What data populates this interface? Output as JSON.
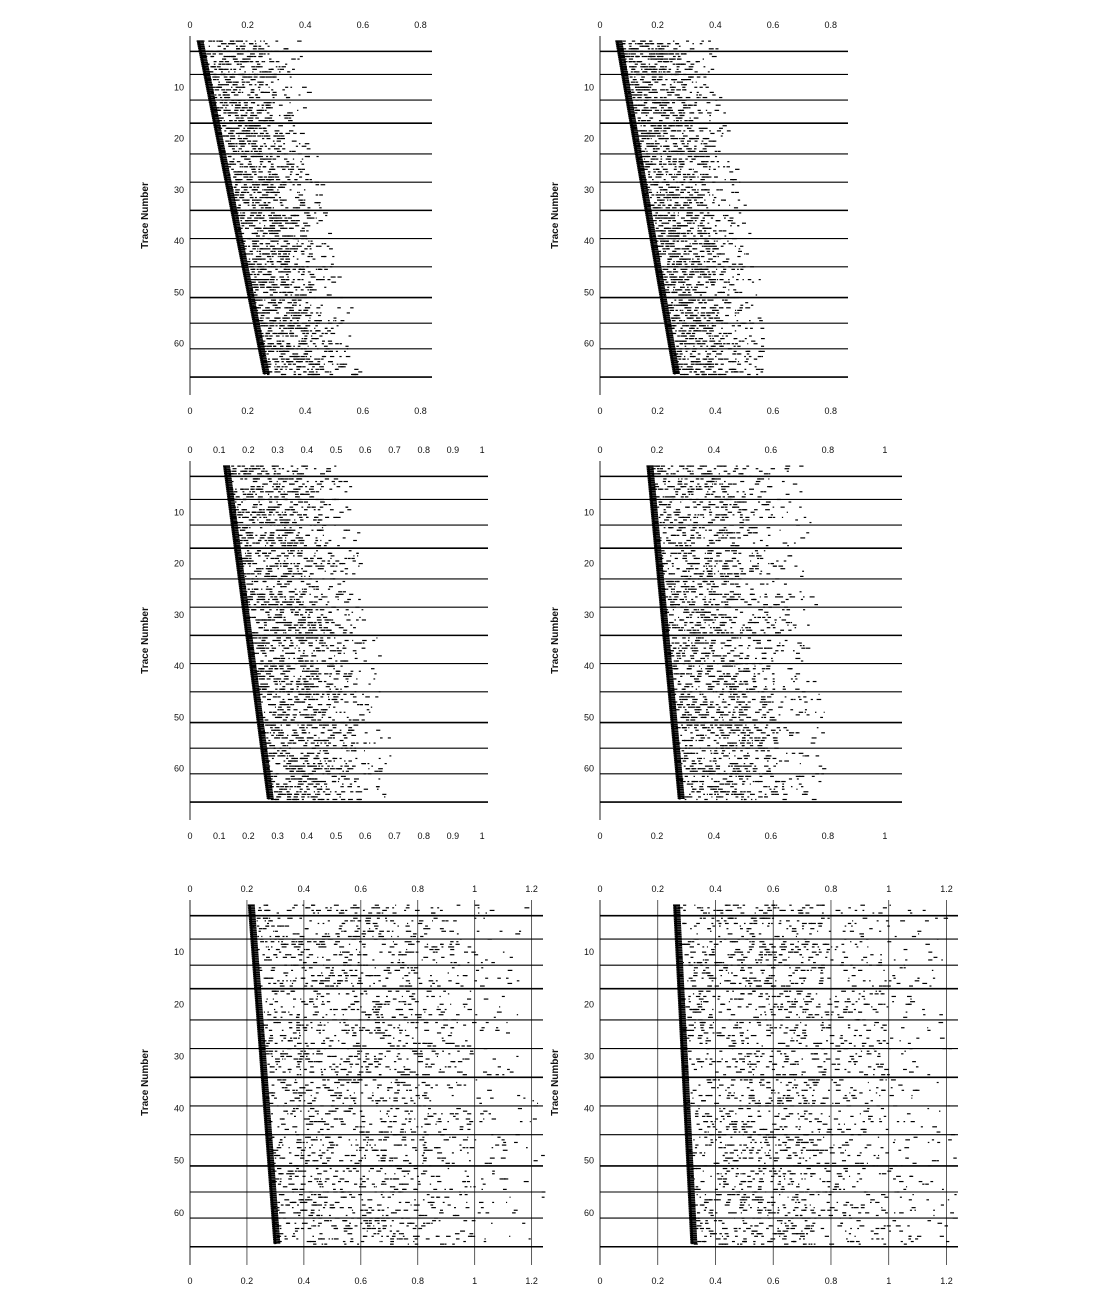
{
  "chart_data": [
    {
      "type": "scatter",
      "ylabel": "Trace Number",
      "xlabel": "",
      "xticks": [
        "0",
        "0.2",
        "0.4",
        "0.6",
        "0.8"
      ],
      "xlim": [
        0,
        0.84
      ],
      "yticks": [
        "10",
        "20",
        "30",
        "40",
        "50",
        "60"
      ],
      "ylim": [
        0,
        70
      ],
      "grid": "horizontal trace-boundary lines",
      "first_arrival": [
        {
          "trace": 1,
          "t": 0.03
        },
        {
          "trace": 66,
          "t": 0.26
        }
      ],
      "noise_extent_t": 0.35
    },
    {
      "type": "scatter",
      "ylabel": "Trace Number",
      "xlabel": "",
      "xticks": [
        "0",
        "0.2",
        "0.4",
        "0.6",
        "0.8"
      ],
      "xlim": [
        0,
        0.86
      ],
      "yticks": [
        "10",
        "20",
        "30",
        "40",
        "50",
        "60"
      ],
      "ylim": [
        0,
        70
      ],
      "grid": "horizontal trace-boundary lines",
      "first_arrival": [
        {
          "trace": 1,
          "t": 0.06
        },
        {
          "trace": 66,
          "t": 0.26
        }
      ],
      "noise_extent_t": 0.35
    },
    {
      "type": "scatter",
      "ylabel": "Trace Number",
      "xlabel": "",
      "xticks": [
        "0",
        "0.1",
        "0.2",
        "0.3",
        "0.4",
        "0.5",
        "0.6",
        "0.7",
        "0.8",
        "0.9",
        "1"
      ],
      "xlim": [
        0,
        1.02
      ],
      "yticks": [
        "10",
        "20",
        "30",
        "40",
        "50",
        "60"
      ],
      "ylim": [
        0,
        70
      ],
      "grid": "horizontal trace-boundary lines",
      "first_arrival": [
        {
          "trace": 1,
          "t": 0.12
        },
        {
          "trace": 66,
          "t": 0.27
        }
      ],
      "noise_extent_t": 0.45
    },
    {
      "type": "scatter",
      "ylabel": "Trace Number",
      "xlabel": "",
      "xticks": [
        "0",
        "0.2",
        "0.4",
        "0.6",
        "0.8",
        "1"
      ],
      "xlim": [
        0,
        1.06
      ],
      "yticks": [
        "10",
        "20",
        "30",
        "40",
        "50",
        "60"
      ],
      "ylim": [
        0,
        70
      ],
      "grid": "horizontal trace-boundary lines",
      "first_arrival": [
        {
          "trace": 1,
          "t": 0.17
        },
        {
          "trace": 66,
          "t": 0.28
        }
      ],
      "noise_extent_t": 0.55
    },
    {
      "type": "scatter",
      "ylabel": "Trace Number",
      "xlabel": "",
      "xticks": [
        "0",
        "0.2",
        "0.4",
        "0.6",
        "0.8",
        "1",
        "1.2"
      ],
      "xlim": [
        0,
        1.24
      ],
      "yticks": [
        "10",
        "20",
        "30",
        "40",
        "50",
        "60"
      ],
      "ylim": [
        0,
        70
      ],
      "grid": "horizontal lines and vertical lines at x ticks",
      "first_arrival": [
        {
          "trace": 1,
          "t": 0.21
        },
        {
          "trace": 66,
          "t": 0.3
        }
      ],
      "noise_extent_t": 1.0
    },
    {
      "type": "scatter",
      "ylabel": "Trace Number",
      "xlabel": "",
      "xticks": [
        "0",
        "0.2",
        "0.4",
        "0.6",
        "0.8",
        "1",
        "1.2"
      ],
      "xlim": [
        0,
        1.24
      ],
      "yticks": [
        "10",
        "20",
        "30",
        "40",
        "50",
        "60"
      ],
      "ylim": [
        0,
        70
      ],
      "grid": "horizontal lines and vertical lines at x ticks",
      "first_arrival": [
        {
          "trace": 1,
          "t": 0.26
        },
        {
          "trace": 66,
          "t": 0.32
        }
      ],
      "noise_extent_t": 1.0
    }
  ]
}
